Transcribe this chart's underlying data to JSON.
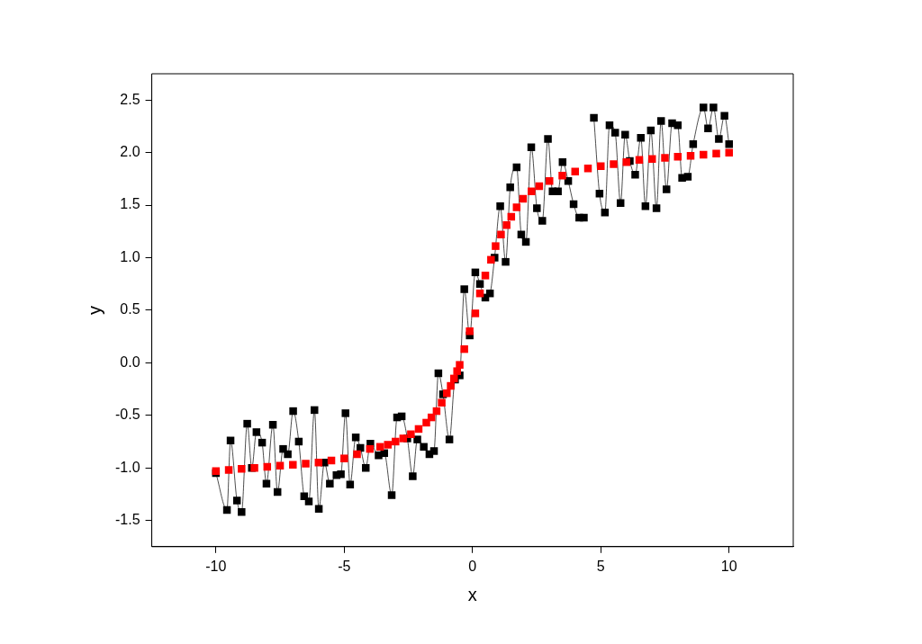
{
  "chart_data": {
    "type": "scatter",
    "xlabel": "x",
    "ylabel": "y",
    "xlim": [
      -12.5,
      12.5
    ],
    "ylim": [
      -1.75,
      2.75
    ],
    "xticks": [
      -10,
      -5,
      0,
      5,
      10
    ],
    "yticks": [
      {
        "value": -1.5,
        "label": "-1.5"
      },
      {
        "value": -1,
        "label": "-1.0"
      },
      {
        "value": -0.5,
        "label": "-0.5"
      },
      {
        "value": 0,
        "label": "0.0"
      },
      {
        "value": 0.5,
        "label": "0.5"
      },
      {
        "value": 1,
        "label": "1.0"
      },
      {
        "value": 1.5,
        "label": "1.5"
      },
      {
        "value": 2,
        "label": "2.0"
      },
      {
        "value": 2.5,
        "label": "2.5"
      }
    ],
    "grid": false,
    "legend": false,
    "marker": "square",
    "series": [
      {
        "type": "line",
        "color": "#000000",
        "x": [
          -10,
          -9.57,
          -9.43,
          -9.18,
          -9.0,
          -8.78,
          -8.6,
          -8.42,
          -8.2,
          -8.03,
          -7.78,
          -7.6,
          -7.38,
          -7.2,
          -6.99,
          -6.77,
          -6.56,
          -6.38,
          -6.16,
          -5.99,
          -5.77,
          -5.56,
          -5.3,
          -5.13,
          -4.95,
          -4.77,
          -4.55,
          -4.37,
          -4.16,
          -3.98,
          -3.66,
          -3.44,
          -3.15,
          -2.94,
          -2.76,
          -2.54,
          -2.33,
          -2.15,
          -1.9,
          -1.68,
          -1.5,
          -1.33,
          -1.15,
          -0.9,
          -0.68,
          -0.5,
          -0.32,
          -0.11,
          0.11,
          0.29,
          0.5,
          0.68,
          0.86,
          1.08,
          1.29,
          1.47,
          1.72,
          1.9,
          2.08,
          2.29,
          2.51,
          2.72,
          2.94,
          3.12,
          3.33,
          3.51,
          3.73,
          3.94,
          4.16,
          4.34,
          4.52,
          4.73,
          4.95,
          5.16,
          5.34,
          5.56,
          5.77,
          5.95,
          6.13,
          6.34,
          6.56,
          6.74,
          6.95,
          7.17,
          7.35,
          7.56,
          7.78,
          8.0,
          8.17,
          8.39,
          8.6,
          9.0,
          9.18,
          9.39,
          9.6,
          9.82,
          10.0
        ],
        "values": [
          -1.05,
          -1.4,
          -0.74,
          -1.31,
          -1.42,
          -0.58,
          -1.0,
          -0.66,
          -0.76,
          -1.15,
          -0.59,
          -1.23,
          -0.82,
          -0.87,
          -0.46,
          -0.75,
          -1.27,
          -1.32,
          -0.45,
          -1.39,
          -0.95,
          -1.15,
          -1.07,
          -1.06,
          -0.48,
          -1.16,
          -0.71,
          -0.81,
          -1.0,
          -0.77,
          -0.88,
          -0.86,
          -1.26,
          -0.52,
          -0.51,
          -0.72,
          -1.08,
          -0.73,
          -0.8,
          -0.87,
          -0.84,
          -0.1,
          -0.3,
          -0.73,
          -0.16,
          -0.12,
          0.7,
          0.26,
          0.86,
          0.75,
          0.62,
          0.66,
          1.0,
          1.49,
          0.96,
          1.67,
          1.86,
          1.22,
          1.15,
          2.05,
          1.47,
          1.35,
          2.13,
          1.63,
          1.63,
          1.91,
          1.73,
          1.51,
          1.38,
          1.38,
          null,
          2.33,
          1.61,
          1.43,
          2.26,
          2.19,
          1.52,
          2.17,
          1.92,
          1.79,
          2.14,
          1.49,
          2.21,
          1.47,
          2.3,
          1.65,
          2.28,
          2.26,
          1.76,
          1.77,
          2.08,
          2.43,
          2.23,
          2.43,
          2.13,
          2.35,
          2.08
        ]
      },
      {
        "type": "scatter",
        "color": "#ff0000",
        "x": [
          -10,
          -9.5,
          -9,
          -8.5,
          -8,
          -7.5,
          -7,
          -6.5,
          -6,
          -5.5,
          -5,
          -4.5,
          -4,
          -3.6,
          -3.3,
          -3,
          -2.7,
          -2.4,
          -2.1,
          -1.8,
          -1.6,
          -1.4,
          -1.2,
          -1,
          -0.85,
          -0.72,
          -0.6,
          -0.5,
          -0.32,
          -0.11,
          0.11,
          0.29,
          0.5,
          0.72,
          0.9,
          1.11,
          1.33,
          1.51,
          1.72,
          1.97,
          2.3,
          2.6,
          3,
          3.5,
          4,
          4.5,
          5,
          5.5,
          6,
          6.5,
          7,
          7.5,
          8,
          8.5,
          9,
          9.5,
          10
        ],
        "values": [
          -1.03,
          -1.02,
          -1.01,
          -1.0,
          -0.99,
          -0.98,
          -0.97,
          -0.96,
          -0.95,
          -0.93,
          -0.91,
          -0.87,
          -0.82,
          -0.8,
          -0.78,
          -0.75,
          -0.72,
          -0.68,
          -0.63,
          -0.57,
          -0.52,
          -0.46,
          -0.38,
          -0.29,
          -0.22,
          -0.15,
          -0.08,
          -0.02,
          0.13,
          0.3,
          0.47,
          0.66,
          0.83,
          0.98,
          1.11,
          1.22,
          1.31,
          1.39,
          1.48,
          1.56,
          1.63,
          1.68,
          1.73,
          1.78,
          1.82,
          1.85,
          1.87,
          1.89,
          1.91,
          1.93,
          1.94,
          1.95,
          1.96,
          1.97,
          1.98,
          1.99,
          2.0
        ]
      }
    ]
  }
}
